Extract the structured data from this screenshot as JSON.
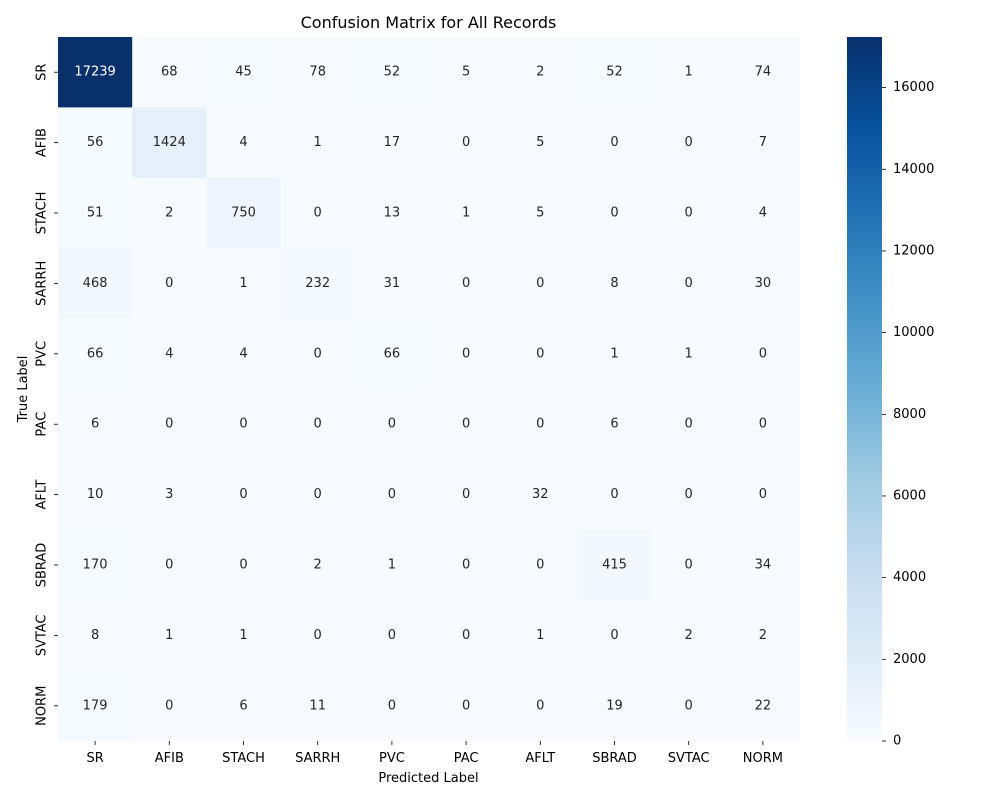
{
  "chart_data": {
    "type": "heatmap",
    "title": "Confusion Matrix for All Records",
    "xlabel": "Predicted Label",
    "ylabel": "True Label",
    "x_categories": [
      "SR",
      "AFIB",
      "STACH",
      "SARRH",
      "PVC",
      "PAC",
      "AFLT",
      "SBRAD",
      "SVTAC",
      "NORM"
    ],
    "y_categories": [
      "SR",
      "AFIB",
      "STACH",
      "SARRH",
      "PVC",
      "PAC",
      "AFLT",
      "SBRAD",
      "SVTAC",
      "NORM"
    ],
    "values": [
      [
        17239,
        68,
        45,
        78,
        52,
        5,
        2,
        52,
        1,
        74
      ],
      [
        56,
        1424,
        4,
        1,
        17,
        0,
        5,
        0,
        0,
        7
      ],
      [
        51,
        2,
        750,
        0,
        13,
        1,
        5,
        0,
        0,
        4
      ],
      [
        468,
        0,
        1,
        232,
        31,
        0,
        0,
        8,
        0,
        30
      ],
      [
        66,
        4,
        4,
        0,
        66,
        0,
        0,
        1,
        1,
        0
      ],
      [
        6,
        0,
        0,
        0,
        0,
        0,
        0,
        6,
        0,
        0
      ],
      [
        10,
        3,
        0,
        0,
        0,
        0,
        32,
        0,
        0,
        0
      ],
      [
        170,
        0,
        0,
        2,
        1,
        0,
        0,
        415,
        0,
        34
      ],
      [
        8,
        1,
        1,
        0,
        0,
        0,
        1,
        0,
        2,
        2
      ],
      [
        179,
        0,
        6,
        11,
        0,
        0,
        0,
        19,
        0,
        22
      ]
    ],
    "colormap": "Blues",
    "colorbar": {
      "range": [
        0,
        17239
      ],
      "ticks": [
        0,
        2000,
        4000,
        6000,
        8000,
        10000,
        12000,
        14000,
        16000
      ]
    },
    "grid": false
  }
}
